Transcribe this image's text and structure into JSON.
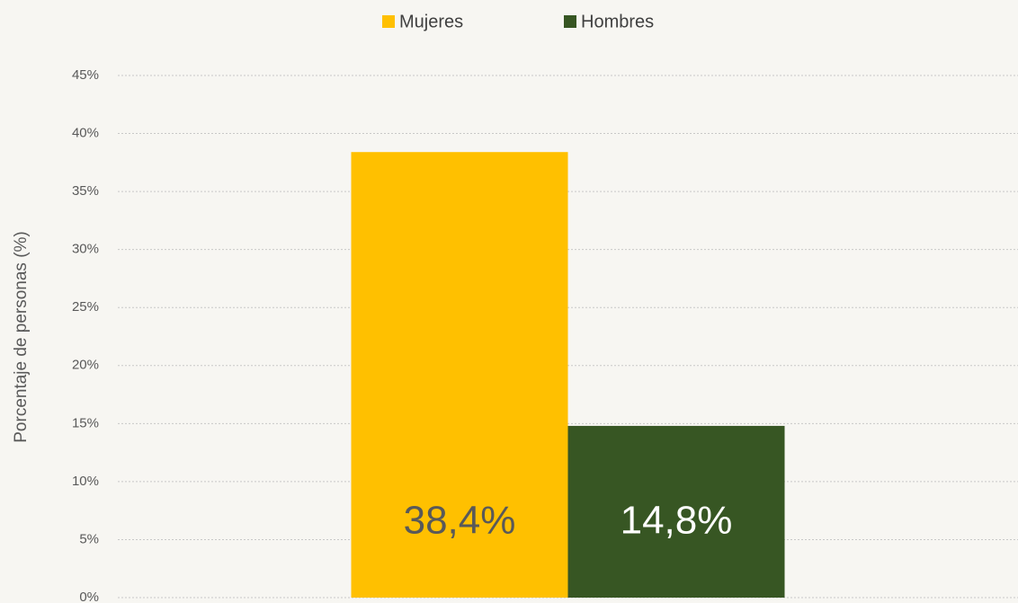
{
  "chart_data": {
    "type": "bar",
    "y_label": "Porcentaje de personas (%)",
    "categories": [
      null
    ],
    "series": [
      {
        "name": "Mujeres",
        "color": "#ffc000",
        "label_color": "#595959",
        "values": [
          38.4
        ],
        "value_labels": [
          "38,4%"
        ]
      },
      {
        "name": "Hombres",
        "color": "#375623",
        "label_color": "#ffffff",
        "values": [
          14.8
        ],
        "value_labels": [
          "14,8%"
        ]
      }
    ],
    "ylim": [
      0,
      45
    ],
    "yticks": [
      {
        "value": 0,
        "label": "0%"
      },
      {
        "value": 5,
        "label": "5%"
      },
      {
        "value": 10,
        "label": "10%"
      },
      {
        "value": 15,
        "label": "15%"
      },
      {
        "value": 20,
        "label": "20%"
      },
      {
        "value": 25,
        "label": "25%"
      },
      {
        "value": 30,
        "label": "30%"
      },
      {
        "value": 35,
        "label": "35%"
      },
      {
        "value": 40,
        "label": "40%"
      },
      {
        "value": 45,
        "label": "45%"
      }
    ],
    "grid": true,
    "legend": "top"
  }
}
